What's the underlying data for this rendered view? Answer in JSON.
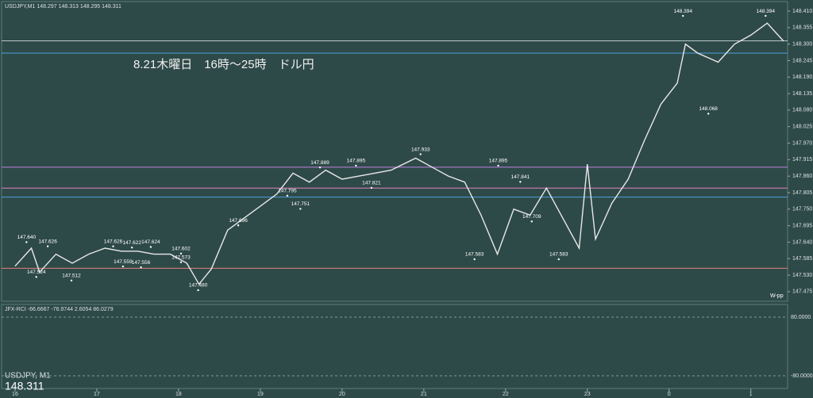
{
  "header": "USDJPY,M1  148.297 148.313 148.295 148.311",
  "chart_data": {
    "type": "line",
    "title": "8.21木曜日　16時～25時　ドル円",
    "x": [
      16.0,
      16.2,
      16.3,
      16.5,
      16.7,
      16.9,
      17.1,
      17.3,
      17.5,
      17.7,
      17.9,
      18.1,
      18.25,
      18.4,
      18.6,
      18.8,
      19.0,
      19.2,
      19.4,
      19.6,
      19.8,
      20.0,
      20.2,
      20.4,
      20.6,
      20.9,
      21.1,
      21.3,
      21.5,
      21.7,
      21.9,
      22.1,
      22.3,
      22.5,
      22.7,
      22.9,
      23.0,
      23.1,
      23.3,
      23.5,
      23.7,
      23.9,
      24.1,
      24.2,
      24.35,
      24.6,
      24.8,
      25.0,
      25.2,
      25.4
    ],
    "series": [
      {
        "color": "#e8e8e8",
        "values": [
          147.56,
          147.62,
          147.54,
          147.6,
          147.57,
          147.6,
          147.62,
          147.61,
          147.61,
          147.6,
          147.6,
          147.57,
          147.5,
          147.55,
          147.68,
          147.72,
          147.76,
          147.8,
          147.87,
          147.84,
          147.88,
          147.85,
          147.86,
          147.87,
          147.88,
          147.92,
          147.89,
          147.86,
          147.84,
          147.73,
          147.6,
          147.75,
          147.73,
          147.82,
          147.72,
          147.62,
          147.9,
          147.65,
          147.77,
          147.85,
          147.98,
          148.1,
          148.17,
          148.3,
          148.27,
          148.24,
          148.3,
          148.33,
          148.37,
          148.31
        ]
      }
    ],
    "price_labels": {
      "x": [
        16.14,
        16.4,
        16.26,
        16.69,
        17.2,
        17.43,
        17.66,
        18.03,
        17.32,
        17.54,
        18.03,
        18.24,
        18.73,
        19.33,
        19.49,
        19.73,
        20.17,
        20.36,
        20.96,
        21.91,
        22.18,
        22.32,
        21.62,
        22.65,
        24.17,
        25.18,
        24.48
      ],
      "values": [
        147.64,
        147.626,
        147.524,
        147.512,
        147.626,
        147.622,
        147.624,
        147.602,
        147.559,
        147.556,
        147.573,
        147.48,
        147.696,
        147.795,
        147.751,
        147.889,
        147.895,
        147.821,
        147.933,
        147.895,
        147.841,
        147.709,
        147.583,
        147.583,
        148.394,
        148.394,
        148.068
      ],
      "value_labels": [
        "147.640",
        "147.626",
        "147.524",
        "147.512",
        "147.626",
        "147.622",
        "147.624",
        "147.602",
        "147.559",
        "147.556",
        "147.573",
        "147.480",
        "147.696",
        "147.795",
        "147.751",
        "147.889",
        "147.895",
        "147.821",
        "147.933",
        "147.895",
        "147.841",
        "147.709",
        "147.583",
        "147.583",
        "148.394",
        "148.394",
        "148.068"
      ]
    },
    "levels": {
      "values": [
        148.311,
        148.27,
        147.89,
        147.82,
        147.79,
        147.553
      ],
      "colors": [
        "#b8c8c8",
        "#4aa0e0",
        "#c080e0",
        "#e080c0",
        "#4aa0e0",
        "#e08080"
      ]
    },
    "xlim": [
      15.816,
      25.43
    ],
    "xticks": [
      16,
      17,
      18,
      19,
      20,
      21,
      22,
      23,
      {
        "value": 24,
        "label": "0"
      },
      {
        "value": 25,
        "label": "1"
      }
    ],
    "ylim": [
      147.443,
      148.447
    ],
    "yticks": [
      {
        "value": 148.41,
        "label": "148.410"
      },
      148.355,
      {
        "value": 148.3,
        "label": "148.300"
      },
      148.245,
      {
        "value": 148.19,
        "label": "148.190"
      },
      148.135,
      {
        "value": 148.08,
        "label": "148.080"
      },
      148.025,
      {
        "value": 147.97,
        "label": "147.970"
      },
      147.915,
      {
        "value": 147.86,
        "label": "147.860"
      },
      147.805,
      {
        "value": 147.75,
        "label": "147.750"
      },
      147.695,
      {
        "value": 147.64,
        "label": "147.640"
      },
      147.585,
      {
        "value": 147.53,
        "label": "147.530"
      },
      147.475
    ],
    "pivot_label": "W-pp"
  },
  "indicator": {
    "header": "JFX-RCI -66.6667 -76.9744 2.6054 86.0279",
    "top_label": "80.0000",
    "bottom_label": "-80.0000"
  },
  "footer": {
    "symbol": "USDJPY, M1",
    "price": "148.311"
  }
}
